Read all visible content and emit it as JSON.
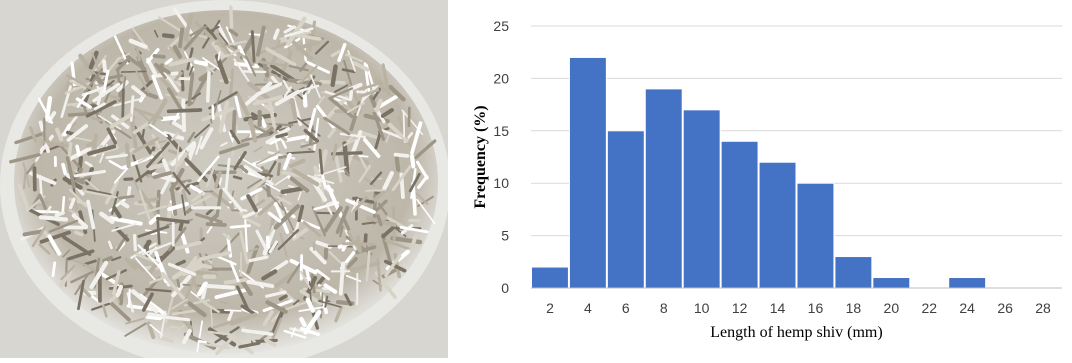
{
  "photo": {
    "description_icon": "hemp-shiv-dish-photo",
    "dish_color": "#e9e9e6",
    "shiv_light": "#f2f1ee",
    "shiv_mid": "#b9b2a3",
    "shiv_dark": "#7a7265"
  },
  "chart_data": {
    "type": "bar",
    "title": "",
    "xlabel": "Length of hemp shiv (mm)",
    "ylabel": "Frequency (%)",
    "xlim": [
      1,
      29
    ],
    "ylim": [
      0,
      25
    ],
    "yticks": [
      0,
      5,
      10,
      15,
      20,
      25
    ],
    "xticks": [
      2,
      4,
      6,
      8,
      10,
      12,
      14,
      16,
      18,
      20,
      22,
      24,
      26,
      28
    ],
    "bin_width": 2,
    "bars": [
      {
        "x_from": 1,
        "x_to": 3,
        "value": 2
      },
      {
        "x_from": 3,
        "x_to": 5,
        "value": 22
      },
      {
        "x_from": 5,
        "x_to": 7,
        "value": 15
      },
      {
        "x_from": 7,
        "x_to": 9,
        "value": 19
      },
      {
        "x_from": 9,
        "x_to": 11,
        "value": 17
      },
      {
        "x_from": 11,
        "x_to": 13,
        "value": 14
      },
      {
        "x_from": 13,
        "x_to": 15,
        "value": 12
      },
      {
        "x_from": 15,
        "x_to": 17,
        "value": 10
      },
      {
        "x_from": 17,
        "x_to": 19,
        "value": 3
      },
      {
        "x_from": 19,
        "x_to": 21,
        "value": 1
      },
      {
        "x_from": 21,
        "x_to": 23,
        "value": 0
      },
      {
        "x_from": 23,
        "x_to": 25,
        "value": 1
      },
      {
        "x_from": 25,
        "x_to": 27,
        "value": 0
      },
      {
        "x_from": 27,
        "x_to": 29,
        "value": 0
      }
    ],
    "bar_color": "#4472c4",
    "grid": true,
    "grid_color": "#d9d9d9",
    "legend": "none"
  }
}
